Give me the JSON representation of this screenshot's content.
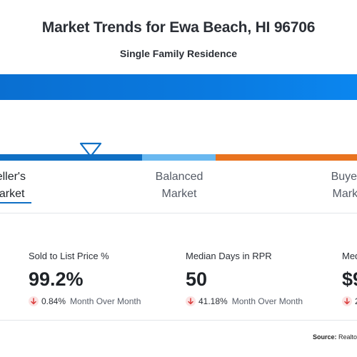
{
  "header": {
    "title": "Market Trends for Ewa Beach, HI 96706",
    "subtitle": "Single Family Residence"
  },
  "market_scale": {
    "seller_label_line1": "Seller's",
    "seller_label_line2": "Market",
    "balanced_label_line1": "Balanced",
    "balanced_label_line2": "Market",
    "buyer_label_line1": "Buyer's",
    "buyer_label_line2": "Market",
    "colors": {
      "seller": "#0f6fc4",
      "balanced": "#69b8f0",
      "buyer": "#e9731f",
      "header_bar": "#0a7ae0"
    },
    "marker_icon": "triangle-down-marker-icon"
  },
  "metrics": [
    {
      "label": "Sold to List Price %",
      "value": "99.2%",
      "change_pct": "0.84%",
      "change_period": "Month Over Month",
      "direction_icon": "arrow-down-icon"
    },
    {
      "label": "Median Days in RPR",
      "value": "50",
      "change_pct": "41.18%",
      "change_period": "Month Over Month",
      "direction_icon": "arrow-down-icon"
    },
    {
      "label": "Med",
      "value": "$9",
      "change_pct": "2",
      "change_period": "",
      "direction_icon": "arrow-down-icon"
    }
  ],
  "footer": {
    "source_label": "Source:",
    "source_value": "Realto"
  }
}
